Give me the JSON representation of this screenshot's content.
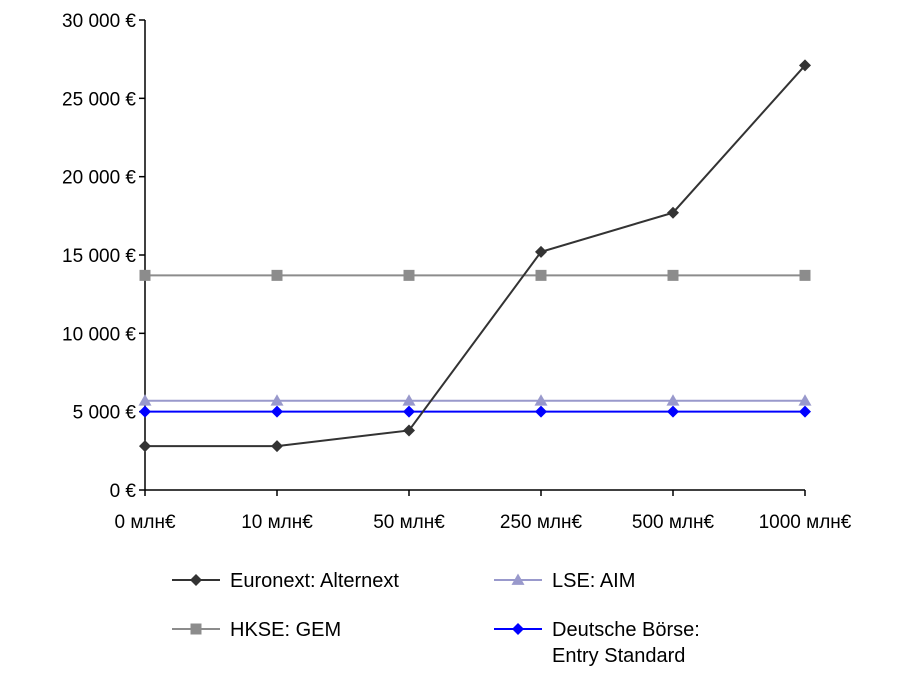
{
  "chart_data": {
    "type": "line",
    "categories": [
      "0 млн€",
      "10 млн€",
      "50 млн€",
      "250 млн€",
      "500 млн€",
      "1000 млн€"
    ],
    "ylim": [
      0,
      30000
    ],
    "yticks": [
      0,
      5000,
      10000,
      15000,
      20000,
      25000,
      30000
    ],
    "ytick_labels": [
      "0 €",
      "5 000 €",
      "10 000 €",
      "15 000 €",
      "20 000 €",
      "25 000 €",
      "30 000 €"
    ],
    "grid": false,
    "legend_position": "bottom",
    "series": [
      {
        "name": "Euronext: Alternext",
        "marker": "diamond",
        "color": "#333333",
        "values": [
          2800,
          2800,
          3800,
          15200,
          17700,
          27100
        ]
      },
      {
        "name": "LSE: AIM",
        "marker": "triangle",
        "color": "#9999cc",
        "values": [
          5700,
          5700,
          5700,
          5700,
          5700,
          5700
        ]
      },
      {
        "name": "HKSE: GEM",
        "marker": "square",
        "color": "#8c8c8c",
        "values": [
          13700,
          13700,
          13700,
          13700,
          13700,
          13700
        ]
      },
      {
        "name": "Deutsche Börse:\nEntry Standard",
        "marker": "diamond",
        "color": "#0000ff",
        "values": [
          5000,
          5000,
          5000,
          5000,
          5000,
          5000
        ]
      }
    ]
  }
}
